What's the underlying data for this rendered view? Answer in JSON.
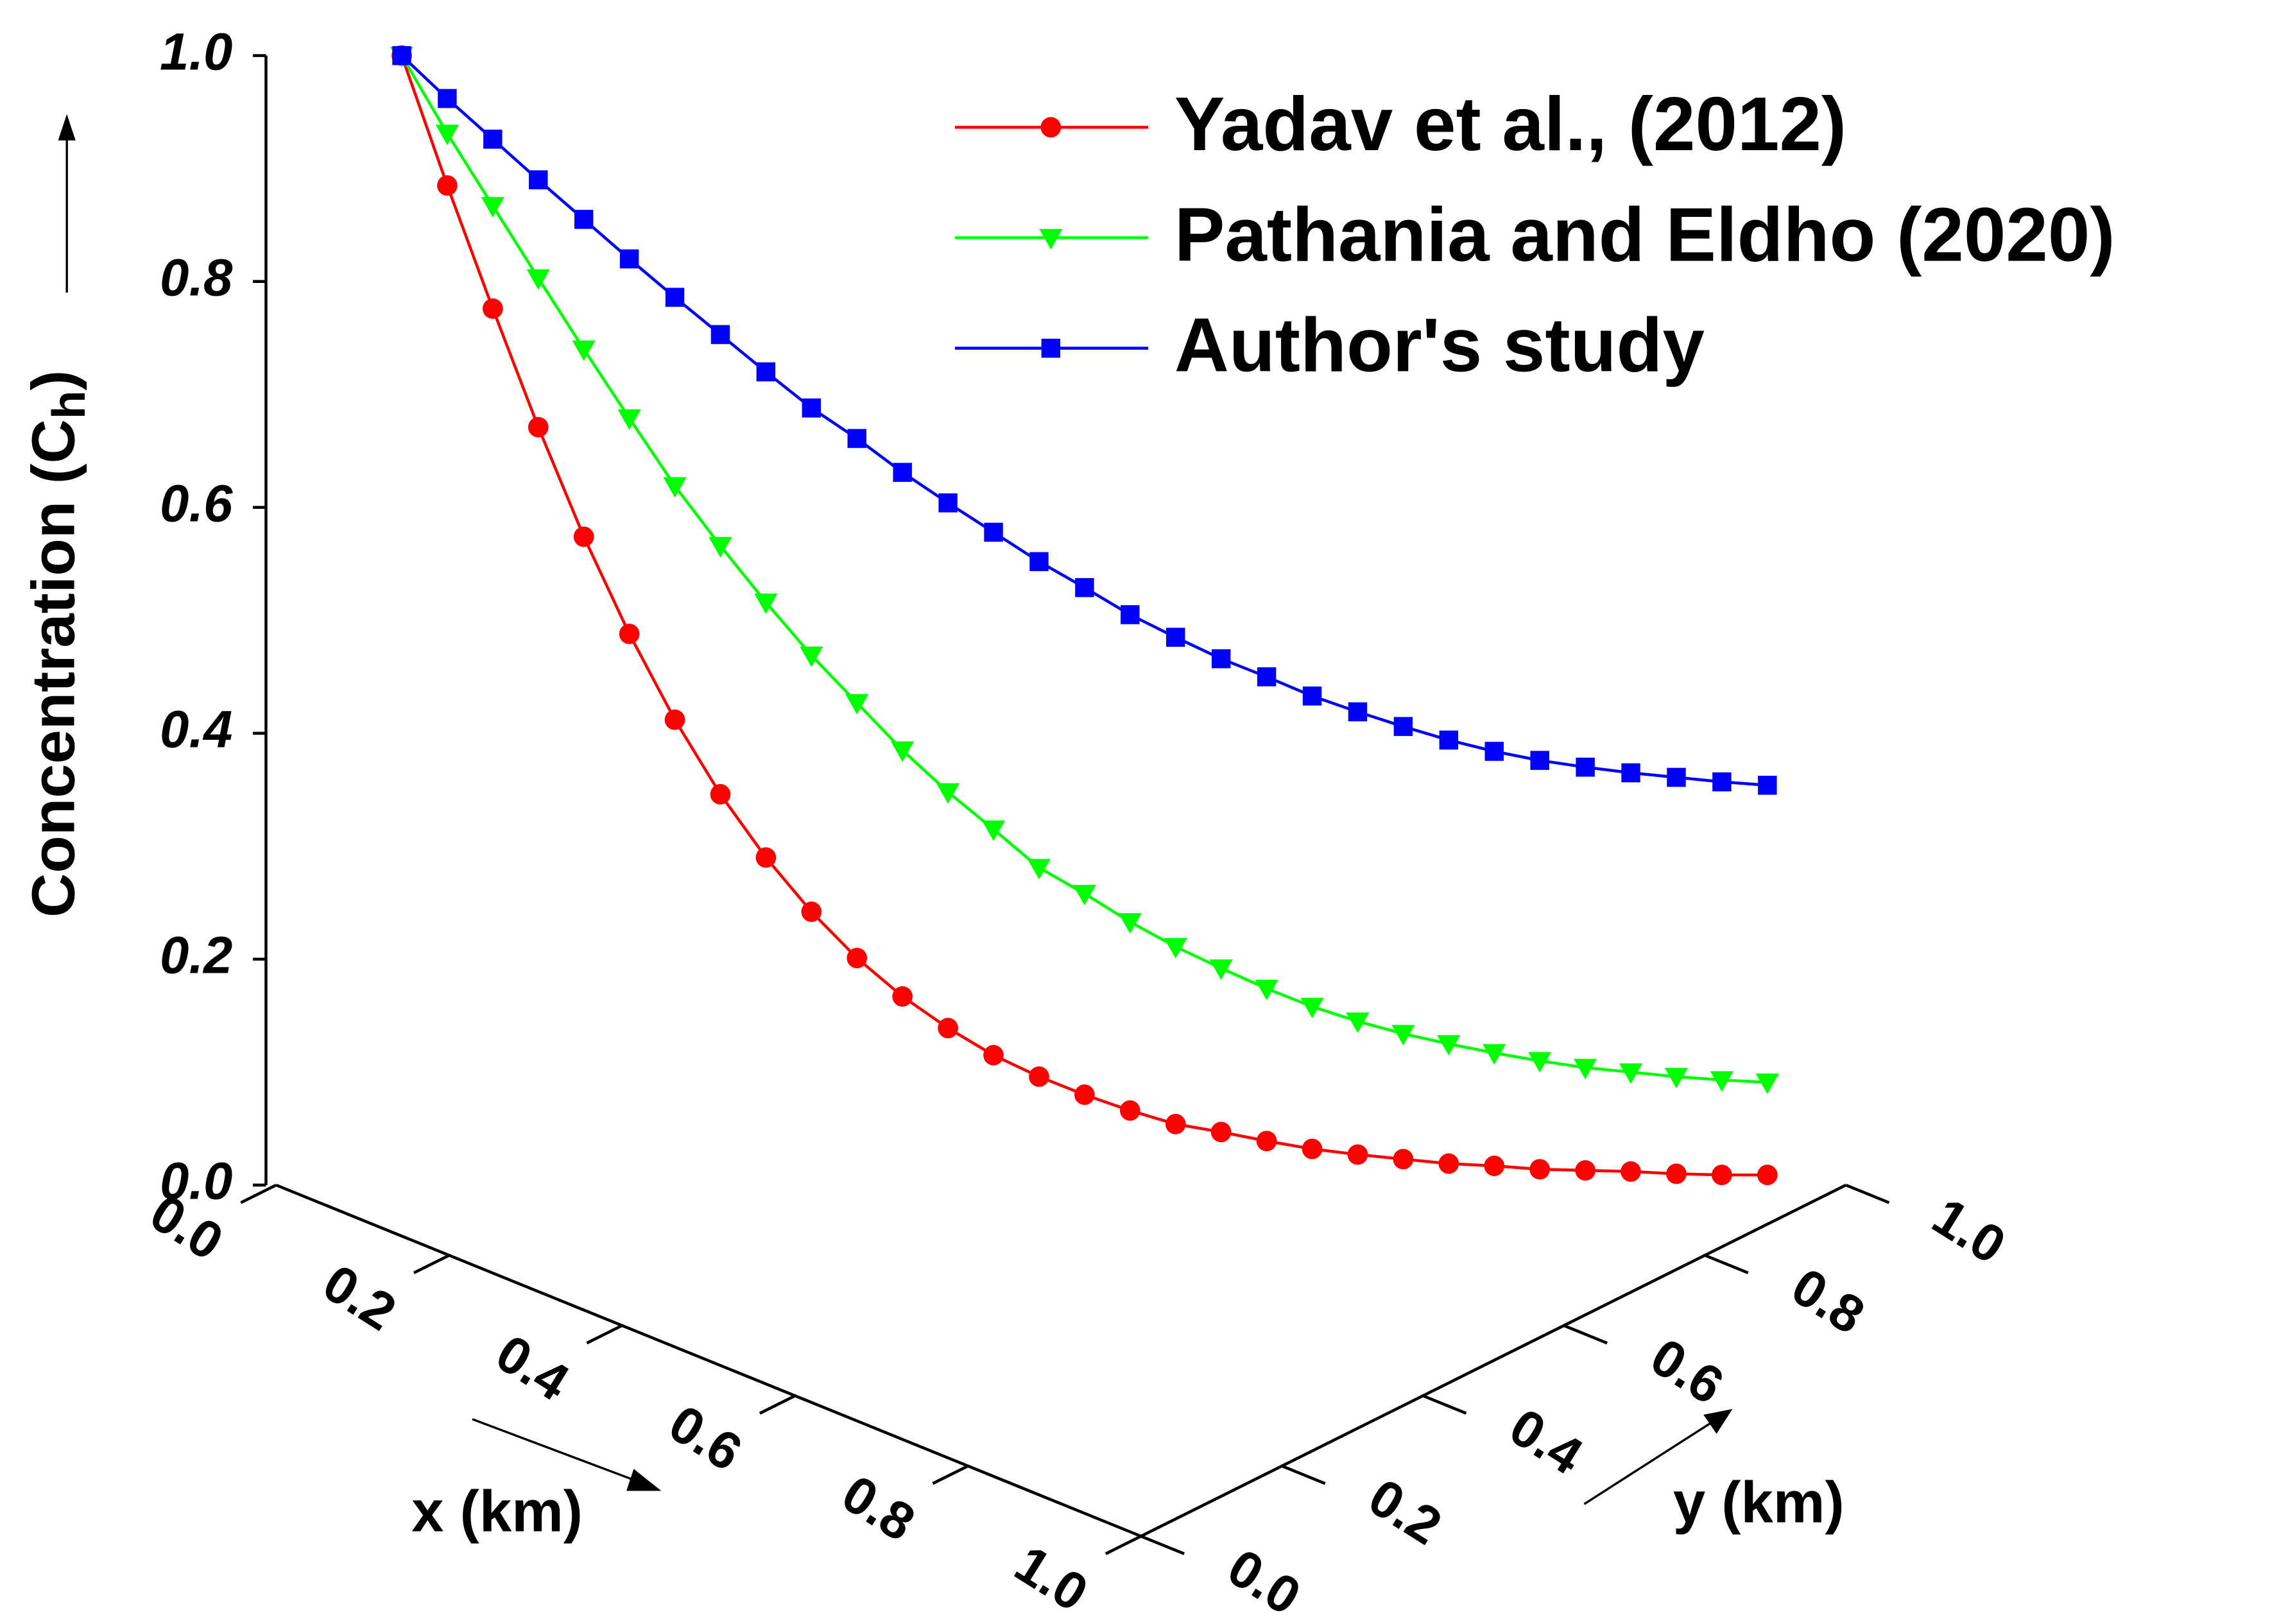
{
  "chart_data": {
    "type": "line3d",
    "zlabel": {
      "text": "Concentration (C",
      "sub": "h",
      "close": ")"
    },
    "xlabel": "x (km)",
    "ylabel": "y (km)",
    "xlim": [
      0,
      1
    ],
    "ylim": [
      0,
      1
    ],
    "zlim": [
      0,
      1
    ],
    "xticks": [
      {
        "value": 0,
        "label": "0.0"
      },
      0.2,
      0.4,
      0.6,
      0.8,
      {
        "value": 1,
        "label": "1.0"
      }
    ],
    "yticks": [
      {
        "value": 0,
        "label": "0.0"
      },
      0.2,
      0.4,
      0.6,
      0.8,
      {
        "value": 1,
        "label": "1.0"
      }
    ],
    "zticks": [
      {
        "value": 0,
        "label": "0.0"
      },
      0.2,
      0.4,
      0.6,
      0.8,
      {
        "value": 1,
        "label": "1.0"
      }
    ],
    "x": [
      0.08,
      0.109,
      0.138,
      0.167,
      0.196,
      0.225,
      0.254,
      0.283,
      0.312,
      0.341,
      0.37,
      0.399,
      0.428,
      0.457,
      0.486,
      0.515,
      0.544,
      0.573,
      0.602,
      0.631,
      0.66,
      0.689,
      0.718,
      0.747,
      0.776,
      0.805,
      0.834,
      0.863,
      0.892,
      0.921,
      0.95
    ],
    "y": [
      0.08,
      0.109,
      0.138,
      0.167,
      0.196,
      0.225,
      0.254,
      0.283,
      0.312,
      0.341,
      0.37,
      0.399,
      0.428,
      0.457,
      0.486,
      0.515,
      0.544,
      0.573,
      0.602,
      0.631,
      0.66,
      0.689,
      0.718,
      0.747,
      0.776,
      0.805,
      0.834,
      0.863,
      0.892,
      0.921,
      0.95
    ],
    "series": [
      {
        "name": "Yadav et al., (2012)",
        "color": "#ff0000",
        "marker": "circle",
        "values": [
          1.0,
          0.885,
          0.776,
          0.671,
          0.574,
          0.488,
          0.412,
          0.346,
          0.29,
          0.242,
          0.201,
          0.167,
          0.139,
          0.115,
          0.096,
          0.08,
          0.066,
          0.054,
          0.047,
          0.039,
          0.032,
          0.027,
          0.023,
          0.019,
          0.017,
          0.014,
          0.013,
          0.012,
          0.01,
          0.009,
          0.009
        ]
      },
      {
        "name": "Pathania and Eldho (2020)",
        "color": "#00ff00",
        "marker": "triangle-down",
        "values": [
          1.0,
          0.931,
          0.867,
          0.803,
          0.74,
          0.679,
          0.619,
          0.566,
          0.516,
          0.469,
          0.427,
          0.385,
          0.348,
          0.315,
          0.281,
          0.258,
          0.233,
          0.211,
          0.192,
          0.174,
          0.158,
          0.145,
          0.134,
          0.125,
          0.117,
          0.11,
          0.104,
          0.1,
          0.096,
          0.093,
          0.091
        ]
      },
      {
        "name": "Author's study",
        "color": "#0000ff",
        "marker": "square",
        "values": [
          1.0,
          0.962,
          0.926,
          0.89,
          0.855,
          0.82,
          0.786,
          0.753,
          0.72,
          0.688,
          0.661,
          0.631,
          0.604,
          0.578,
          0.552,
          0.529,
          0.505,
          0.485,
          0.466,
          0.45,
          0.433,
          0.419,
          0.406,
          0.394,
          0.384,
          0.376,
          0.37,
          0.365,
          0.361,
          0.357,
          0.354
        ]
      }
    ]
  }
}
